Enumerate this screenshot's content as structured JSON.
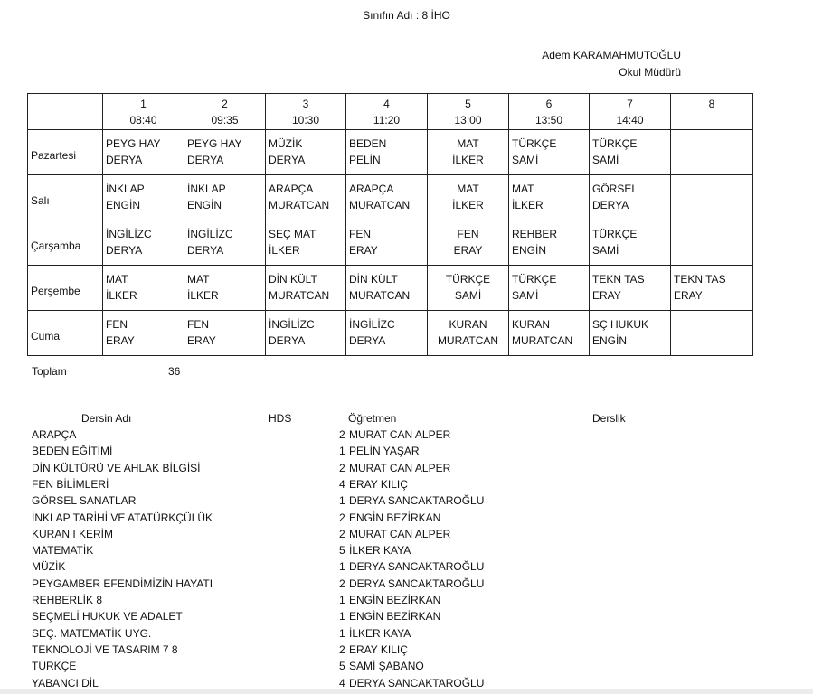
{
  "header": {
    "class_name": "Sınıfın Adı : 8 İHO",
    "principal_name": "Adem KARAMAHMUTOĞLU",
    "principal_title": "Okul Müdürü"
  },
  "timetable": {
    "periods": [
      {
        "no": "1",
        "time": "08:40"
      },
      {
        "no": "2",
        "time": "09:35"
      },
      {
        "no": "3",
        "time": "10:30"
      },
      {
        "no": "4",
        "time": "11:20"
      },
      {
        "no": "5",
        "time": "13:00"
      },
      {
        "no": "6",
        "time": "13:50"
      },
      {
        "no": "7",
        "time": "14:40"
      },
      {
        "no": "8",
        "time": ""
      }
    ],
    "days": [
      {
        "name": "Pazartesi",
        "cells": [
          [
            "PEYG HAY",
            "DERYA"
          ],
          [
            "PEYG HAY",
            "DERYA"
          ],
          [
            "MÜZİK",
            "DERYA"
          ],
          [
            "BEDEN",
            "PELİN"
          ],
          [
            "MAT",
            "İLKER"
          ],
          [
            "TÜRKÇE",
            "SAMİ"
          ],
          [
            "TÜRKÇE",
            "SAMİ"
          ],
          [
            "",
            ""
          ]
        ]
      },
      {
        "name": "Salı",
        "cells": [
          [
            "İNKLAP",
            "ENGİN"
          ],
          [
            "İNKLAP",
            "ENGİN"
          ],
          [
            "ARAPÇA",
            "MURATCAN"
          ],
          [
            "ARAPÇA",
            "MURATCAN"
          ],
          [
            "MAT",
            "İLKER"
          ],
          [
            "MAT",
            "İLKER"
          ],
          [
            "GÖRSEL",
            "DERYA"
          ],
          [
            "",
            ""
          ]
        ]
      },
      {
        "name": "Çarşamba",
        "cells": [
          [
            "İNGİLİZC",
            "DERYA"
          ],
          [
            "İNGİLİZC",
            "DERYA"
          ],
          [
            "SEÇ MAT",
            "İLKER"
          ],
          [
            "FEN",
            "ERAY"
          ],
          [
            "FEN",
            "ERAY"
          ],
          [
            "REHBER",
            "ENGİN"
          ],
          [
            "TÜRKÇE",
            "SAMİ"
          ],
          [
            "",
            ""
          ]
        ]
      },
      {
        "name": "Perşembe",
        "cells": [
          [
            "MAT",
            "İLKER"
          ],
          [
            "MAT",
            "İLKER"
          ],
          [
            "DİN KÜLT",
            "MURATCAN"
          ],
          [
            "DİN KÜLT",
            "MURATCAN"
          ],
          [
            "TÜRKÇE",
            "SAMİ"
          ],
          [
            "TÜRKÇE",
            "SAMİ"
          ],
          [
            "TEKN TAS",
            "ERAY"
          ],
          [
            "TEKN TAS",
            "ERAY"
          ]
        ]
      },
      {
        "name": "Cuma",
        "cells": [
          [
            "FEN",
            "ERAY"
          ],
          [
            "FEN",
            "ERAY"
          ],
          [
            "İNGİLİZC",
            "DERYA"
          ],
          [
            "İNGİLİZC",
            "DERYA"
          ],
          [
            "KURAN",
            "MURATCAN"
          ],
          [
            "KURAN",
            "MURATCAN"
          ],
          [
            "SÇ HUKUK",
            "ENGİN"
          ],
          [
            "",
            ""
          ]
        ]
      }
    ],
    "total_label": "Toplam",
    "total_value": "36"
  },
  "courses": {
    "headers": {
      "name": "Dersin Adı",
      "hds": "HDS",
      "teacher": "Öğretmen",
      "room": "Derslik"
    },
    "rows": [
      {
        "name": "ARAPÇA",
        "hds": "2",
        "teacher": "MURAT CAN ALPER"
      },
      {
        "name": "BEDEN EĞİTİMİ",
        "hds": "1",
        "teacher": "PELİN YAŞAR"
      },
      {
        "name": "DİN KÜLTÜRÜ VE AHLAK BİLGİSİ",
        "hds": "2",
        "teacher": "MURAT CAN ALPER"
      },
      {
        "name": "FEN BİLİMLERİ",
        "hds": "4",
        "teacher": "ERAY KILIÇ"
      },
      {
        "name": "GÖRSEL SANATLAR",
        "hds": "1",
        "teacher": "DERYA SANCAKTAROĞLU"
      },
      {
        "name": "İNKLAP TARİHİ VE ATATÜRKÇÜLÜK",
        "hds": "2",
        "teacher": "ENGİN BEZİRKAN"
      },
      {
        "name": "KURAN I KERİM",
        "hds": "2",
        "teacher": "MURAT CAN ALPER"
      },
      {
        "name": "MATEMATİK",
        "hds": "5",
        "teacher": "İLKER KAYA"
      },
      {
        "name": "MÜZİK",
        "hds": "1",
        "teacher": "DERYA SANCAKTAROĞLU"
      },
      {
        "name": "PEYGAMBER EFENDİMİZİN HAYATI",
        "hds": "2",
        "teacher": "DERYA SANCAKTAROĞLU"
      },
      {
        "name": "REHBERLİK 8",
        "hds": "1",
        "teacher": "ENGİN BEZİRKAN"
      },
      {
        "name": "SEÇMELİ HUKUK VE ADALET",
        "hds": "1",
        "teacher": "ENGİN BEZİRKAN"
      },
      {
        "name": "SEÇ. MATEMATİK UYG.",
        "hds": "1",
        "teacher": "İLKER KAYA"
      },
      {
        "name": "TEKNOLOJİ VE TASARIM 7 8",
        "hds": "2",
        "teacher": "ERAY KILIÇ"
      },
      {
        "name": "TÜRKÇE",
        "hds": "5",
        "teacher": "SAMİ ŞABANO"
      },
      {
        "name": "YABANCI DİL",
        "hds": "4",
        "teacher": "DERYA SANCAKTAROĞLU"
      }
    ]
  }
}
